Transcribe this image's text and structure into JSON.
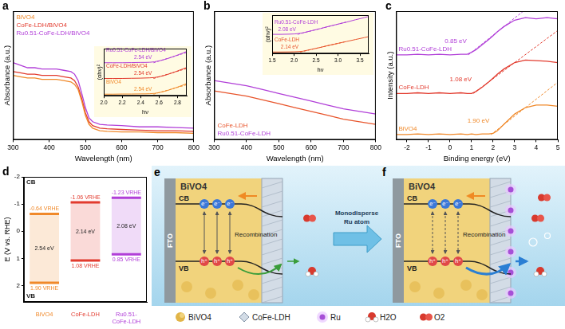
{
  "chart_data": [
    {
      "panel_label": "a",
      "type": "line",
      "x_label": "Wavelength (nm)",
      "y_label": "Absorbance (a.u.)",
      "xlim": [
        300,
        800
      ],
      "xticks": [
        300,
        400,
        500,
        600,
        700,
        800
      ],
      "ylim": [
        0,
        1
      ],
      "tick_labels": "x",
      "legend": "upper left",
      "x": [
        300,
        320,
        340,
        360,
        380,
        400,
        420,
        440,
        460,
        470,
        480,
        490,
        500,
        510,
        520,
        540,
        560,
        600,
        650,
        700,
        750,
        800
      ],
      "series": [
        {
          "name": "BiVO4",
          "color": "#f0892a",
          "values": [
            0.5,
            0.49,
            0.48,
            0.48,
            0.47,
            0.47,
            0.47,
            0.46,
            0.45,
            0.43,
            0.39,
            0.3,
            0.19,
            0.12,
            0.09,
            0.07,
            0.065,
            0.06,
            0.06,
            0.055,
            0.055,
            0.05
          ]
        },
        {
          "name": "CoFe-LDH/BiVO4",
          "color": "#e23b2e",
          "values": [
            0.53,
            0.52,
            0.51,
            0.51,
            0.5,
            0.5,
            0.5,
            0.49,
            0.48,
            0.46,
            0.41,
            0.32,
            0.21,
            0.14,
            0.11,
            0.09,
            0.085,
            0.08,
            0.075,
            0.07,
            0.07,
            0.065
          ]
        },
        {
          "name": "Ru0.51-CoFe-LDH/BiVO4",
          "color": "#b13fd8",
          "values": [
            0.6,
            0.58,
            0.56,
            0.56,
            0.55,
            0.55,
            0.55,
            0.54,
            0.53,
            0.51,
            0.46,
            0.36,
            0.25,
            0.17,
            0.14,
            0.12,
            0.115,
            0.11,
            0.1,
            0.1,
            0.095,
            0.09
          ]
        }
      ],
      "inset": {
        "type": "line",
        "x_label": "hν",
        "y_label": "(αhν)²",
        "xlim": [
          2,
          2.9
        ],
        "xticks": [
          {
            "value": 2,
            "label": "2.0"
          },
          2.2,
          2.4,
          2.6,
          2.8
        ],
        "ylim": [
          0,
          3
        ],
        "tick_labels": "x",
        "x": [
          2,
          2.1,
          2.2,
          2.3,
          2.4,
          2.45,
          2.5,
          2.55,
          2.6,
          2.65,
          2.7,
          2.75,
          2.8,
          2.85,
          2.9
        ],
        "series": [
          {
            "name": "Ru0.51-CoFe-LDH/BiVO4",
            "color": "#b13fd8",
            "values": [
              2.1,
              2.1,
              2.1,
              2.11,
              2.12,
              2.12,
              2.13,
              2.16,
              2.22,
              2.29,
              2.38,
              2.48,
              2.59,
              2.7,
              2.82
            ],
            "edge": {
              "value": 2.54,
              "label": "2.54 eV"
            }
          },
          {
            "name": "CoFe-LDH/BiVO4",
            "color": "#e23b2e",
            "values": [
              1.1,
              1.1,
              1.1,
              1.11,
              1.12,
              1.13,
              1.14,
              1.16,
              1.21,
              1.28,
              1.37,
              1.47,
              1.58,
              1.69,
              1.8
            ],
            "edge": {
              "value": 2.54,
              "label": "2.54 eV"
            }
          },
          {
            "name": "BiVO4",
            "color": "#f0892a",
            "values": [
              0.1,
              0.1,
              0.11,
              0.11,
              0.12,
              0.12,
              0.13,
              0.15,
              0.2,
              0.27,
              0.35,
              0.45,
              0.55,
              0.66,
              0.78
            ],
            "edge": {
              "value": 2.54,
              "label": "2.54 eV"
            }
          }
        ]
      }
    },
    {
      "panel_label": "b",
      "type": "line",
      "x_label": "Wavelength (nm)",
      "y_label": "Absorbance (a.u.)",
      "xlim": [
        300,
        800
      ],
      "xticks": [
        300,
        400,
        500,
        600,
        700,
        800
      ],
      "ylim": [
        0,
        1
      ],
      "tick_labels": "x",
      "legend": "lower left",
      "x": [
        300,
        350,
        400,
        450,
        500,
        550,
        600,
        650,
        700,
        750,
        800
      ],
      "series": [
        {
          "name": "CoFe-LDH",
          "color": "#e8552c",
          "values": [
            0.38,
            0.36,
            0.34,
            0.31,
            0.28,
            0.25,
            0.22,
            0.19,
            0.16,
            0.14,
            0.12
          ]
        },
        {
          "name": "Ru0.51-CoFe-LDH",
          "color": "#b13fd8",
          "values": [
            0.46,
            0.44,
            0.42,
            0.39,
            0.36,
            0.33,
            0.3,
            0.27,
            0.24,
            0.22,
            0.2
          ]
        }
      ],
      "inset": {
        "type": "line",
        "x_label": "hν",
        "y_label": "(αhν)²",
        "xlim": [
          1.5,
          3.7
        ],
        "xticks": [
          1.5,
          {
            "value": 2,
            "label": "2.0"
          },
          2.5,
          {
            "value": 3,
            "label": "3.0"
          },
          3.5
        ],
        "ylim": [
          0,
          2
        ],
        "tick_labels": "x",
        "x": [
          1.5,
          1.7,
          1.9,
          2,
          2.1,
          2.2,
          2.4,
          2.6,
          2.8,
          3,
          3.2,
          3.4,
          3.6,
          3.7
        ],
        "series": [
          {
            "name": "Ru0.51-CoFe-LDH",
            "color": "#b13fd8",
            "values": [
              1.0,
              1.0,
              1.01,
              1.02,
              1.04,
              1.08,
              1.19,
              1.3,
              1.42,
              1.53,
              1.64,
              1.76,
              1.87,
              1.93
            ],
            "edge": {
              "value": 2.08,
              "label": "2.08 eV"
            }
          },
          {
            "name": "CoFe-LDH",
            "color": "#e8552c",
            "values": [
              0.08,
              0.08,
              0.085,
              0.09,
              0.1,
              0.12,
              0.22,
              0.32,
              0.43,
              0.53,
              0.63,
              0.73,
              0.83,
              0.88
            ],
            "edge": {
              "value": 2.14,
              "label": "2.14 eV"
            }
          }
        ]
      }
    },
    {
      "panel_label": "c",
      "type": "line",
      "x_label": "Binding energy (eV)",
      "y_label": "Intensity (a.u.)",
      "xlim": [
        -2.5,
        5
      ],
      "xticks": [
        -2,
        -1,
        0,
        1,
        2,
        3,
        4,
        5
      ],
      "ylim": [
        0,
        1
      ],
      "tick_labels": "x",
      "x": [
        -2.5,
        -2,
        -1.5,
        -1,
        -0.5,
        0,
        0.5,
        0.8,
        1,
        1.2,
        1.5,
        1.8,
        2,
        2.2,
        2.5,
        3,
        3.5,
        4,
        4.5,
        5
      ],
      "series": [
        {
          "name": "Ru0.51-CoFe-LDH",
          "color": "#b13fd8",
          "values": [
            0.66,
            0.66,
            0.665,
            0.66,
            0.665,
            0.66,
            0.665,
            0.665,
            0.68,
            0.7,
            0.74,
            0.78,
            0.81,
            0.84,
            0.88,
            0.93,
            0.95,
            0.94,
            0.95,
            0.94
          ],
          "edge": {
            "value": 0.85,
            "label": "0.85 eV"
          }
        },
        {
          "name": "CoFe-LDH",
          "color": "#e23b2e",
          "values": [
            0.36,
            0.36,
            0.365,
            0.36,
            0.365,
            0.36,
            0.365,
            0.36,
            0.36,
            0.375,
            0.41,
            0.45,
            0.48,
            0.51,
            0.55,
            0.6,
            0.62,
            0.615,
            0.61,
            0.6
          ],
          "edge": {
            "value": 1.08,
            "label": "1.08 eV"
          }
        },
        {
          "name": "BiVO4",
          "color": "#f0892a",
          "values": [
            0.04,
            0.04,
            0.045,
            0.04,
            0.045,
            0.04,
            0.045,
            0.04,
            0.045,
            0.04,
            0.045,
            0.045,
            0.05,
            0.07,
            0.12,
            0.2,
            0.25,
            0.27,
            0.27,
            0.26
          ],
          "edge": {
            "value": 1.9,
            "label": "1.90 eV"
          }
        }
      ]
    },
    {
      "panel_label": "d",
      "type": "bar",
      "y_label": "E (V vs. RHE)",
      "ylim": [
        2.6,
        -2
      ],
      "yticks": [
        -2,
        -1,
        0,
        1,
        2
      ],
      "data_labels": true,
      "categories": [
        "BiVO4",
        "CoFe-LDH",
        "Ru0.51-CoFe-LDH"
      ],
      "colors": [
        "#f0892a",
        "#e23b2e",
        "#b13fd8"
      ],
      "series": [
        {
          "name": "CB",
          "values": [
            -0.64,
            -1.06,
            -1.23
          ],
          "value_labels": [
            "-0.64 VRHE",
            "-1.06 VRHE",
            "-1.23 VRHE"
          ]
        },
        {
          "name": "VB",
          "values": [
            1.9,
            1.08,
            0.85
          ],
          "value_labels": [
            "1.90 VRHE",
            "1.08 VRHE",
            "0.85 VRHE"
          ]
        }
      ],
      "band_gaps": {
        "values": [
          2.54,
          2.14,
          2.08
        ],
        "value_labels": [
          "2.54 eV",
          "2.14 eV",
          "2.08 eV"
        ]
      }
    }
  ],
  "schematic": {
    "panels": [
      {
        "panel_label": "e"
      },
      {
        "panel_label": "f"
      }
    ],
    "material_label": "BiVO4",
    "substrate_label": "FTO",
    "cb_label": "CB",
    "vb_label": "VB",
    "electron_label": "e⁻",
    "hole_label": "h⁺",
    "recombination_label": "Recombination",
    "transition_label": "Monodisperse Ru atom",
    "legend": [
      "BiVO4",
      "CoFe-LDH",
      "Ru",
      "H2O",
      "O2"
    ]
  }
}
